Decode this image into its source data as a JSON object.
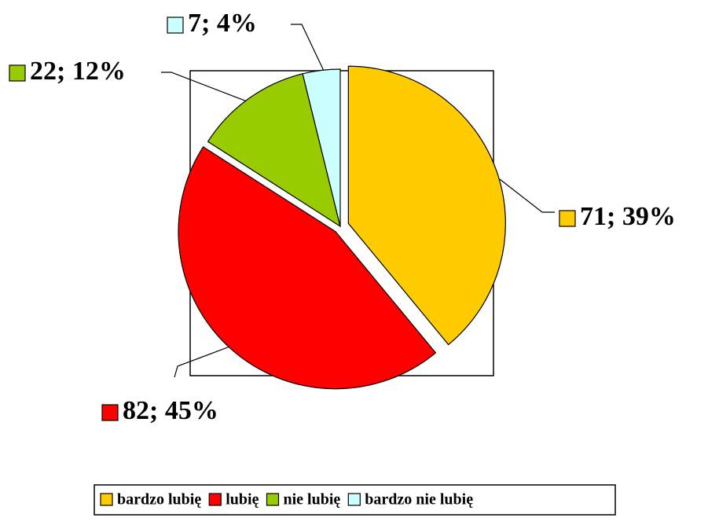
{
  "chart_data": {
    "type": "pie",
    "categories": [
      "bardzo lubię",
      "lubię",
      "nie lubię",
      "bardzo nie lubię"
    ],
    "values": [
      71,
      82,
      22,
      7
    ],
    "value_labels": [
      "71; 39%",
      "82; 45%",
      "22; 12%",
      "7; 4%"
    ],
    "colors": [
      "#ffcc00",
      "#ff0000",
      "#99cc00",
      "#ccffff"
    ],
    "legend": "bottom"
  }
}
